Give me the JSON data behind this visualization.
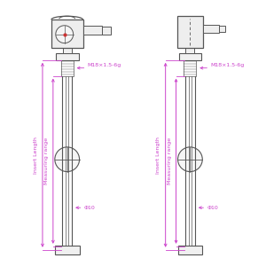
{
  "bg_color": "#ffffff",
  "line_color": "#555555",
  "dim_color": "#cc44cc",
  "fig_width": 3.0,
  "fig_height": 3.0,
  "dpi": 100,
  "label_insert_length": "Insert Length",
  "label_measuring_range": "Measuring range",
  "label_thread": "M18×1.5-6g",
  "label_diameter": "Φ10"
}
